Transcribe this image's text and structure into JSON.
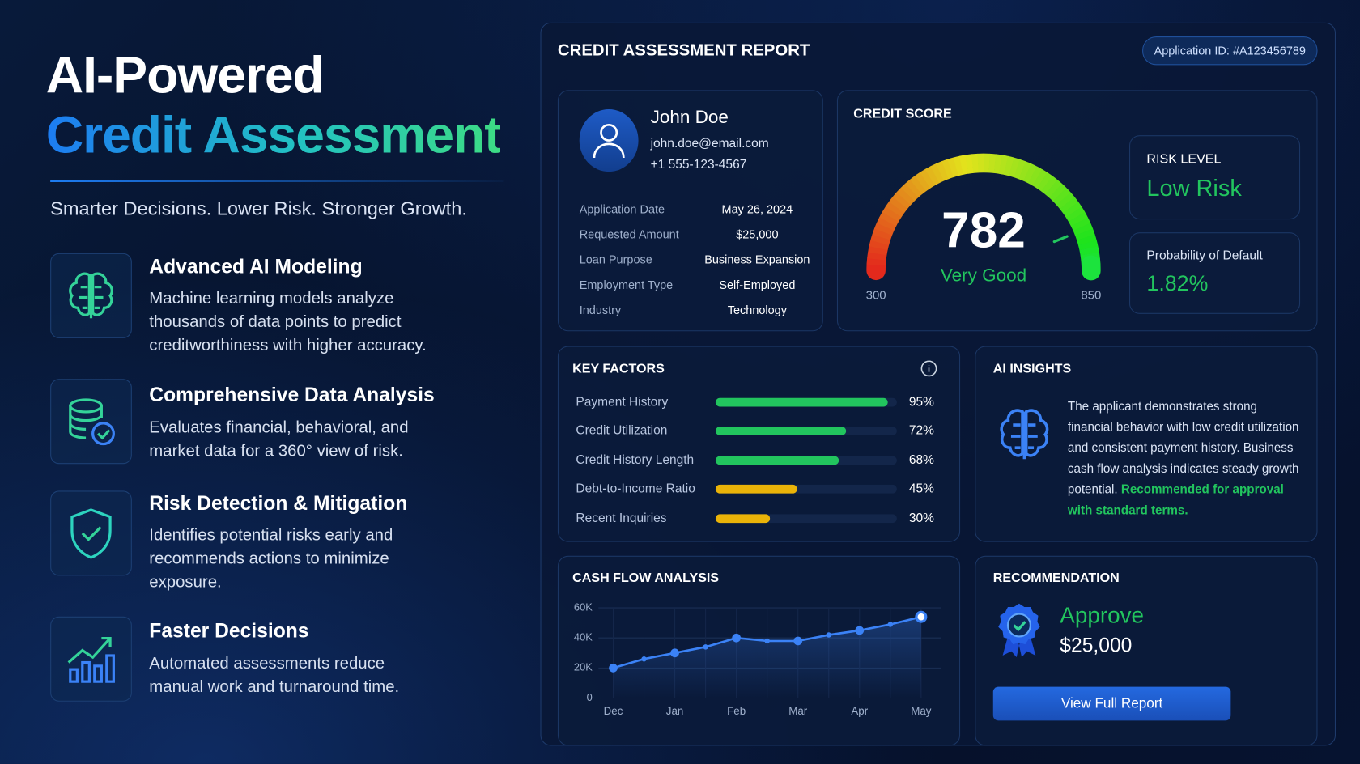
{
  "hero": {
    "title_line1": "AI-Powered",
    "title_line2": "Credit Assessment",
    "tagline": "Smarter Decisions. Lower Risk. Stronger Growth."
  },
  "features": [
    {
      "title": "Advanced AI Modeling",
      "text": "Machine learning models analyze thousands of data points to predict creditworthiness with higher accuracy."
    },
    {
      "title": "Comprehensive Data Analysis",
      "text": "Evaluates financial, behavioral, and market data for a 360° view of risk."
    },
    {
      "title": "Risk Detection & Mitigation",
      "text": "Identifies potential risks early and recommends actions to minimize exposure."
    },
    {
      "title": "Faster Decisions",
      "text": "Automated assessments reduce manual work and turnaround time."
    }
  ],
  "report": {
    "title": "CREDIT ASSESSMENT REPORT",
    "application_id": "Application ID: #A123456789",
    "applicant": {
      "name": "John Doe",
      "email": "john.doe@email.com",
      "phone": "+1 555-123-4567",
      "details": [
        {
          "label": "Application Date",
          "value": "May 26, 2024"
        },
        {
          "label": "Requested Amount",
          "value": "$25,000"
        },
        {
          "label": "Loan Purpose",
          "value": "Business Expansion"
        },
        {
          "label": "Employment Type",
          "value": "Self-Employed"
        },
        {
          "label": "Industry",
          "value": "Technology"
        }
      ]
    },
    "risk": {
      "label": "RISK LEVEL",
      "value": "Low Risk"
    },
    "default": {
      "label": "Probability of Default",
      "value": "1.82%"
    },
    "insights": {
      "title": "AI INSIGHTS",
      "text": "The applicant demonstrates strong financial behavior with low credit utilization and consistent payment history. Business cash flow analysis indicates steady growth potential.",
      "highlight": "Recommended for approval with standard terms."
    },
    "recommendation": {
      "title": "RECOMMENDATION",
      "decision": "Approve",
      "amount": "$25,000",
      "button": "View Full Report"
    }
  },
  "chart_data": [
    {
      "type": "gauge",
      "title": "CREDIT SCORE",
      "value": 782,
      "status": "Very Good",
      "ylim": [
        300,
        850
      ],
      "yticks": [
        300,
        850
      ]
    },
    {
      "type": "hbar",
      "title": "KEY FACTORS",
      "categories": [
        "Payment History",
        "Credit Utilization",
        "Credit History Length",
        "Debt-to-Income Ratio",
        "Recent Inquiries"
      ],
      "values": [
        95,
        72,
        68,
        45,
        30
      ],
      "value_labels": [
        "95%",
        "72%",
        "68%",
        "45%",
        "30%"
      ],
      "colors": [
        "#22c55e",
        "#22c55e",
        "#22c55e",
        "#eab308",
        "#eab308"
      ],
      "xlim": [
        0,
        100
      ]
    },
    {
      "type": "line",
      "title": "CASH FLOW ANALYSIS",
      "categories": [
        "Dec",
        null,
        "Jan",
        null,
        "Feb",
        null,
        "Mar",
        null,
        "Apr",
        null,
        "May"
      ],
      "values": [
        20,
        26,
        30,
        34,
        40,
        38,
        38,
        42,
        45,
        49,
        54
      ],
      "color": "#3b82f6",
      "ylim": [
        0,
        60
      ],
      "yticks": [
        0,
        {
          "value": 20,
          "label": "20K"
        },
        {
          "value": 40,
          "label": "40K"
        },
        {
          "value": 60,
          "label": "60K"
        }
      ],
      "grid": true
    }
  ]
}
